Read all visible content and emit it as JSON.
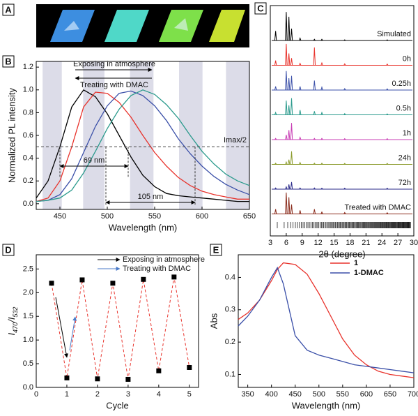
{
  "chart_data": [
    {
      "type": "image",
      "label": "A"
    },
    {
      "type": "line",
      "label": "B",
      "xlabel": "Wavelength (nm)",
      "ylabel": "Normalized PL intensity",
      "x": [
        425,
        437.5,
        450,
        462.5,
        475,
        487.5,
        500,
        512.5,
        525,
        537.5,
        550,
        562.5,
        575,
        587.5,
        600,
        612.5,
        625,
        637.5,
        650
      ],
      "series": [
        {
          "color": "#000000",
          "values": [
            0.05,
            0.2,
            0.5,
            0.85,
            1.0,
            0.94,
            0.79,
            0.6,
            0.41,
            0.25,
            0.15,
            0.09,
            0.07,
            0.06,
            0.05,
            0.04,
            0.03,
            0.02,
            0.02
          ]
        },
        {
          "color": "#e8322b",
          "values": [
            0.02,
            0.05,
            0.2,
            0.5,
            0.85,
            0.98,
            0.97,
            0.89,
            0.76,
            0.6,
            0.45,
            0.33,
            0.23,
            0.16,
            0.11,
            0.08,
            0.06,
            0.04,
            0.04
          ]
        },
        {
          "color": "#3a4fa8",
          "values": [
            0.02,
            0.03,
            0.08,
            0.22,
            0.45,
            0.68,
            0.86,
            0.97,
            0.99,
            0.95,
            0.86,
            0.73,
            0.57,
            0.44,
            0.33,
            0.24,
            0.17,
            0.12,
            0.08
          ]
        },
        {
          "color": "#2a9a8c",
          "values": [
            0.02,
            0.03,
            0.05,
            0.12,
            0.27,
            0.46,
            0.66,
            0.83,
            0.95,
            1.0,
            0.96,
            0.87,
            0.75,
            0.6,
            0.46,
            0.35,
            0.26,
            0.2,
            0.16
          ]
        }
      ],
      "xlim": [
        425,
        650
      ],
      "xticks": [
        450,
        500,
        550,
        600,
        650
      ],
      "ylim": [
        -0.05,
        1.25
      ],
      "yticks": [
        0.0,
        0.2,
        0.4,
        0.6,
        0.8,
        1.0,
        1.2
      ],
      "hline": 0.5,
      "annotations": [
        "Exposing in atmosphere",
        "Treating with DMAC",
        "69 nm",
        "105 nm",
        "Imax/2"
      ]
    },
    {
      "type": "stacked-pattern",
      "label": "C",
      "xlabel": "2θ (degree)",
      "x": [
        4.0,
        6.0,
        6.5,
        7.0,
        8.6,
        11.3,
        12.7,
        17.0,
        25.0
      ],
      "series": [
        {
          "name": "Simulated",
          "color": "#000000",
          "values": [
            0.4,
            1.2,
            1.0,
            0.5,
            0.1,
            0.05,
            0.05,
            0.03,
            0.03
          ]
        },
        {
          "name": "0h",
          "color": "#e8322b",
          "values": [
            0.2,
            0.9,
            0.5,
            0.3,
            0.08,
            0.75,
            0.1,
            0.06,
            0.05
          ]
        },
        {
          "name": "0.25h",
          "color": "#3a4fa8",
          "values": [
            0.15,
            0.8,
            0.5,
            0.6,
            0.15,
            0.4,
            0.12,
            0.06,
            0.05
          ]
        },
        {
          "name": "0.5h",
          "color": "#2a9a8c",
          "values": [
            0.1,
            0.6,
            0.4,
            0.7,
            0.2,
            0.15,
            0.1,
            0.05,
            0.04
          ]
        },
        {
          "name": "1h",
          "color": "#c83cb4",
          "values": [
            0.05,
            0.2,
            0.4,
            0.7,
            0.1,
            0.05,
            0.05,
            0.04,
            0.04
          ]
        },
        {
          "name": "24h",
          "color": "#8a9a2a",
          "values": [
            0.05,
            0.1,
            0.2,
            0.55,
            0.08,
            0.05,
            0.05,
            0.04,
            0.04
          ]
        },
        {
          "name": "72h",
          "color": "#2a2a8a",
          "values": [
            0.05,
            0.1,
            0.2,
            0.3,
            0.05,
            0.05,
            0.04,
            0.04,
            0.04
          ]
        },
        {
          "name": "Treated with DMAC",
          "color": "#8a2a1a",
          "values": [
            0.2,
            0.9,
            0.7,
            0.4,
            0.15,
            0.2,
            0.08,
            0.06,
            0.05
          ]
        }
      ],
      "xlim": [
        3,
        30
      ],
      "xticks": [
        3,
        6,
        9,
        12,
        15,
        18,
        21,
        24,
        27,
        30
      ]
    },
    {
      "type": "scatter",
      "label": "D",
      "xlabel": "Cycle",
      "ylabel": [
        "I",
        "470",
        "/I",
        "532"
      ],
      "x": [
        0.5,
        1,
        1.5,
        2,
        2.5,
        3,
        3.5,
        4,
        4.5,
        5
      ],
      "values": [
        2.2,
        0.2,
        2.27,
        0.18,
        2.2,
        0.17,
        2.28,
        0.35,
        2.33,
        0.42
      ],
      "color": "#000000",
      "line_color": "#e8322b",
      "xlim": [
        0,
        5.3
      ],
      "xticks": [
        0,
        1,
        2,
        3,
        4,
        5
      ],
      "ylim": [
        0,
        2.8
      ],
      "yticks": [
        0.0,
        0.5,
        1.0,
        1.5,
        2.0,
        2.5
      ],
      "legend": [
        "Exposing in atmosphere",
        "Treating with DMAC"
      ]
    },
    {
      "type": "line",
      "label": "E",
      "xlabel": "Wavelength (nm)",
      "ylabel": "Abs",
      "x": [
        330,
        350,
        375,
        400,
        412.5,
        425,
        450,
        475,
        500,
        525,
        550,
        575,
        600,
        625,
        650,
        675,
        700
      ],
      "series": [
        {
          "name": "1",
          "color": "#e8322b",
          "values": [
            0.27,
            0.29,
            0.33,
            0.39,
            0.425,
            0.445,
            0.44,
            0.41,
            0.35,
            0.28,
            0.21,
            0.16,
            0.13,
            0.11,
            0.1,
            0.095,
            0.09
          ]
        },
        {
          "name": "1-DMAC",
          "color": "#3a4fa8",
          "values": [
            0.25,
            0.28,
            0.33,
            0.4,
            0.43,
            0.38,
            0.22,
            0.175,
            0.16,
            0.15,
            0.14,
            0.13,
            0.125,
            0.12,
            0.115,
            0.11,
            0.105
          ]
        }
      ],
      "xlim": [
        330,
        700
      ],
      "xticks": [
        350,
        400,
        450,
        500,
        550,
        600,
        650,
        700
      ],
      "ylim": [
        0.06,
        0.47
      ],
      "yticks": [
        0.1,
        0.2,
        0.3,
        0.4
      ],
      "legend_position": "upper right"
    }
  ]
}
